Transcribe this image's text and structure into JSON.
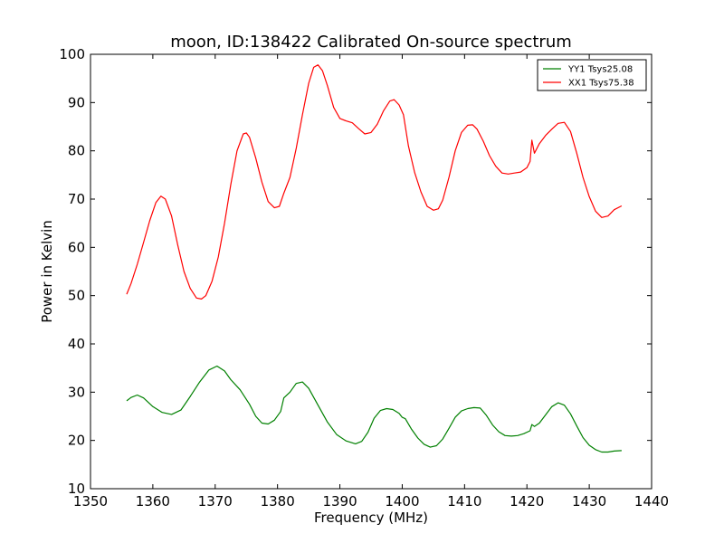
{
  "chart_data": {
    "type": "line",
    "title": "moon, ID:138422 Calibrated On-source spectrum",
    "xlabel": "Frequency (MHz)",
    "ylabel": "Power in Kelvin",
    "xlim": [
      1350,
      1440
    ],
    "ylim": [
      10,
      100
    ],
    "xticks": [
      1350,
      1360,
      1370,
      1380,
      1390,
      1400,
      1410,
      1420,
      1430,
      1440
    ],
    "yticks": [
      10,
      20,
      30,
      40,
      50,
      60,
      70,
      80,
      90,
      100
    ],
    "grid": false,
    "legend_position": "top-right",
    "series": [
      {
        "name": "YY1 Tsys25.08",
        "color": "#008000",
        "x": [
          1355.8,
          1356.5,
          1357.5,
          1358.5,
          1360,
          1361.5,
          1363,
          1364.5,
          1366,
          1367.5,
          1369,
          1370.3,
          1371.5,
          1372.5,
          1374,
          1375.5,
          1376.5,
          1377.5,
          1378.5,
          1379.5,
          1380.5,
          1381,
          1382,
          1383,
          1384,
          1385,
          1386.5,
          1388,
          1389.5,
          1391,
          1392.5,
          1393.5,
          1394.5,
          1395.5,
          1396.5,
          1397.5,
          1398.5,
          1399.5,
          1400,
          1400.5,
          1401.5,
          1402.5,
          1403.5,
          1404.5,
          1405.5,
          1406.5,
          1407.5,
          1408.5,
          1409.5,
          1410.5,
          1411.5,
          1412.5,
          1413.5,
          1414.5,
          1415.5,
          1416.5,
          1417.5,
          1418.5,
          1419.5,
          1420.5,
          1420.8,
          1421.2,
          1422,
          1423,
          1424,
          1425,
          1426,
          1427,
          1428,
          1429,
          1430,
          1431,
          1432,
          1433,
          1434,
          1435.2
        ],
        "values": [
          28.2,
          28.9,
          29.4,
          28.8,
          27.0,
          25.8,
          25.4,
          26.3,
          29.1,
          32.1,
          34.6,
          35.4,
          34.4,
          32.6,
          30.5,
          27.5,
          25.0,
          23.6,
          23.4,
          24.2,
          26.0,
          28.8,
          30.0,
          31.8,
          32.1,
          30.8,
          27.3,
          23.8,
          21.2,
          19.9,
          19.3,
          19.8,
          21.7,
          24.6,
          26.2,
          26.6,
          26.4,
          25.6,
          24.8,
          24.5,
          22.3,
          20.5,
          19.2,
          18.6,
          18.9,
          20.3,
          22.5,
          24.8,
          26.1,
          26.6,
          26.8,
          26.7,
          25.2,
          23.2,
          21.8,
          21.0,
          20.9,
          21.0,
          21.4,
          22.0,
          23.3,
          22.9,
          23.6,
          25.3,
          27.0,
          27.8,
          27.3,
          25.5,
          23.0,
          20.6,
          19.0,
          18.1,
          17.6,
          17.6,
          17.8,
          17.9
        ]
      },
      {
        "name": "XX1 Tsys75.38",
        "color": "#ff0000",
        "x": [
          1355.8,
          1356.5,
          1357.5,
          1358.5,
          1359.5,
          1360.5,
          1361.3,
          1362,
          1363,
          1364,
          1365,
          1366,
          1367,
          1367.8,
          1368.5,
          1369.5,
          1370.5,
          1371.5,
          1372.5,
          1373.5,
          1374.5,
          1375,
          1375.5,
          1376.5,
          1377.5,
          1378.5,
          1379.5,
          1380.3,
          1381,
          1382,
          1383,
          1384,
          1385,
          1385.8,
          1386.5,
          1387.2,
          1388,
          1389,
          1390,
          1391,
          1392,
          1393,
          1394,
          1395,
          1396,
          1397,
          1398,
          1398.7,
          1399.5,
          1400.2,
          1401,
          1402,
          1403,
          1404,
          1405,
          1405.8,
          1406.5,
          1407.5,
          1408.5,
          1409.5,
          1410.5,
          1411.3,
          1412,
          1413,
          1414,
          1415,
          1416,
          1417,
          1418,
          1419,
          1420,
          1420.5,
          1420.8,
          1421.2,
          1422,
          1423,
          1424,
          1425,
          1426,
          1427,
          1428,
          1429,
          1430,
          1431,
          1432,
          1433,
          1434,
          1435.2
        ],
        "values": [
          50.3,
          52.5,
          56.5,
          61.0,
          65.5,
          69.3,
          70.6,
          70.0,
          66.5,
          60.5,
          55.0,
          51.5,
          49.5,
          49.3,
          50.0,
          53.0,
          58.0,
          65.0,
          73.0,
          80.0,
          83.5,
          83.7,
          82.8,
          78.5,
          73.5,
          69.5,
          68.2,
          68.5,
          71.2,
          74.5,
          80.5,
          87.5,
          94.0,
          97.3,
          97.8,
          96.6,
          93.5,
          89.0,
          86.7,
          86.2,
          85.8,
          84.6,
          83.5,
          83.8,
          85.5,
          88.3,
          90.3,
          90.6,
          89.5,
          87.5,
          81.0,
          75.5,
          71.5,
          68.5,
          67.7,
          68.0,
          69.8,
          74.5,
          80.0,
          83.8,
          85.3,
          85.4,
          84.5,
          82.0,
          79.0,
          76.8,
          75.4,
          75.2,
          75.4,
          75.6,
          76.5,
          77.8,
          82.2,
          79.5,
          81.5,
          83.2,
          84.5,
          85.7,
          85.9,
          84.0,
          79.5,
          74.5,
          70.5,
          67.5,
          66.2,
          66.5,
          67.8,
          68.6
        ]
      }
    ]
  }
}
